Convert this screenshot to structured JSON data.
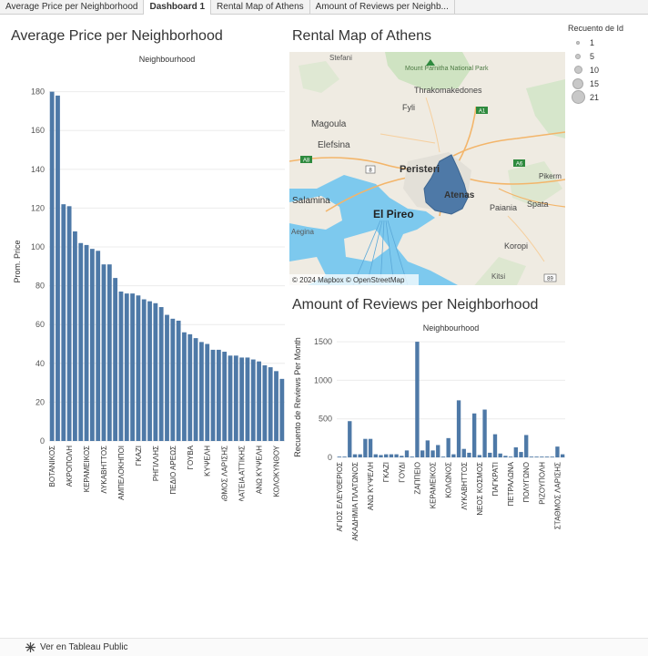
{
  "tabs": [
    {
      "label": "Average Price per Neighborhood",
      "active": false
    },
    {
      "label": "Dashboard 1",
      "active": true
    },
    {
      "label": "Rental Map of Athens",
      "active": false
    },
    {
      "label": "Amount of Reviews per Neighb...",
      "active": false
    }
  ],
  "titles": {
    "price": "Average Price per Neighborhood",
    "map": "Rental Map of Athens",
    "reviews": "Amount of Reviews per Neighborhood"
  },
  "map": {
    "labels": [
      "Stefani",
      "Mount Parnitha National Park",
      "Thrakomakedones",
      "Fyli",
      "Magoula",
      "Elefsina",
      "Peristeri",
      "Pikerm",
      "Salamina",
      "El Pireo",
      "Paiania",
      "Spata",
      "Koropi",
      "Aegina",
      "Kitsi",
      "Atenas"
    ],
    "roads": [
      "A1",
      "A6",
      "A8",
      "8",
      "89"
    ],
    "attribution": "© 2024 Mapbox  © OpenStreetMap"
  },
  "legend": {
    "title": "Recuento de Id",
    "items": [
      "1",
      "5",
      "10",
      "15",
      "21"
    ]
  },
  "footer": {
    "link": "Ver en Tableau Public"
  },
  "colors": {
    "bar": "#4e79a7",
    "grid": "#ececec",
    "water": "#7dc9ee",
    "land": "#efebe2"
  },
  "chart_data": [
    {
      "type": "bar",
      "title": "Average Price per Neighborhood",
      "header": "Neighbourhood",
      "ylabel": "Prom. Price",
      "ylim": [
        0,
        185
      ],
      "yticks": [
        0,
        20,
        40,
        60,
        80,
        100,
        120,
        140,
        160,
        180
      ],
      "tick_labels": [
        "ΒΟΤΑΝΙΚΟΣ",
        "ΑΚΡΟΠΟΛΗ",
        "ΚΕΡΑΜΕΙΚΟΣ",
        "ΛΥΚΑΒΗΤΤΟΣ",
        "ΑΜΠΕΛΟΚΗΠΟΙ",
        "ΓΚΑΖΙ",
        "ΡΗΓΙΛΛΗΣ",
        "ΠΕΔΙΟ ΑΡΕΩΣ",
        "ΓΟΥΒΑ",
        "ΚΥΨΕΛΗ",
        "ΣΤΑΘΜΟΣ ΛΑΡΙΣΗΣ",
        "ΠΛΑΤΕΙΑ ΑΤΤΙΚΗΣ",
        "ΑΝΩ ΚΥΨΕΛΗ",
        "ΚΟΛΟΚΥΝΘΟΥ"
      ],
      "tick_every": 3,
      "values": [
        180,
        178,
        122,
        121,
        108,
        102,
        101,
        99,
        98,
        91,
        91,
        84,
        77,
        76,
        76,
        75,
        73,
        72,
        71,
        69,
        65,
        63,
        62,
        56,
        55,
        53,
        51,
        50,
        47,
        47,
        46,
        44,
        44,
        43,
        43,
        42,
        41,
        39,
        38,
        36,
        32
      ]
    },
    {
      "type": "bar",
      "title": "Amount of Reviews per Neighborhood",
      "header": "Neighbourhood",
      "ylabel": "Recuento de Reviews Per Month",
      "ylim": [
        0,
        1560
      ],
      "yticks": [
        0,
        500,
        1000,
        1500
      ],
      "tick_labels": [
        "ΑΓΙΟΣ ΕΛΕΥΘΕΡΙΟΣ",
        "ΑΚΑΔΗΜΙΑ ΠΛΑΤΩΝΟΣ",
        "ΑΝΩ ΚΥΨΕΛΗ",
        "ΓΚΑΖΙ",
        "ΓΟΥΔΙ",
        "ΖΑΠΠΕΙΟ",
        "ΚΕΡΑΜΕΙΚΟΣ",
        "ΚΟΛΩΝΟΣ",
        "ΛΥΚΑΒΗΤΤΟΣ",
        "ΝΕΟΣ ΚΟΣΜΟΣ",
        "ΠΑΓΚΡΑΤΙ",
        "ΠΕΤΡΑΛΩΝΑ",
        "ΠΟΛΥΓΩΝΟ",
        "ΡΙΖΟΥΠΟΛΗ",
        "ΣΤΑΘΜΟΣ ΛΑΡΙΣΗΣ"
      ],
      "tick_every": 3,
      "values": [
        10,
        10,
        470,
        40,
        40,
        240,
        240,
        40,
        30,
        40,
        40,
        40,
        20,
        90,
        10,
        1500,
        90,
        220,
        90,
        160,
        10,
        250,
        40,
        740,
        110,
        60,
        570,
        30,
        620,
        60,
        300,
        50,
        20,
        10,
        130,
        70,
        290,
        10,
        10,
        10,
        10,
        10,
        140,
        40
      ]
    }
  ]
}
